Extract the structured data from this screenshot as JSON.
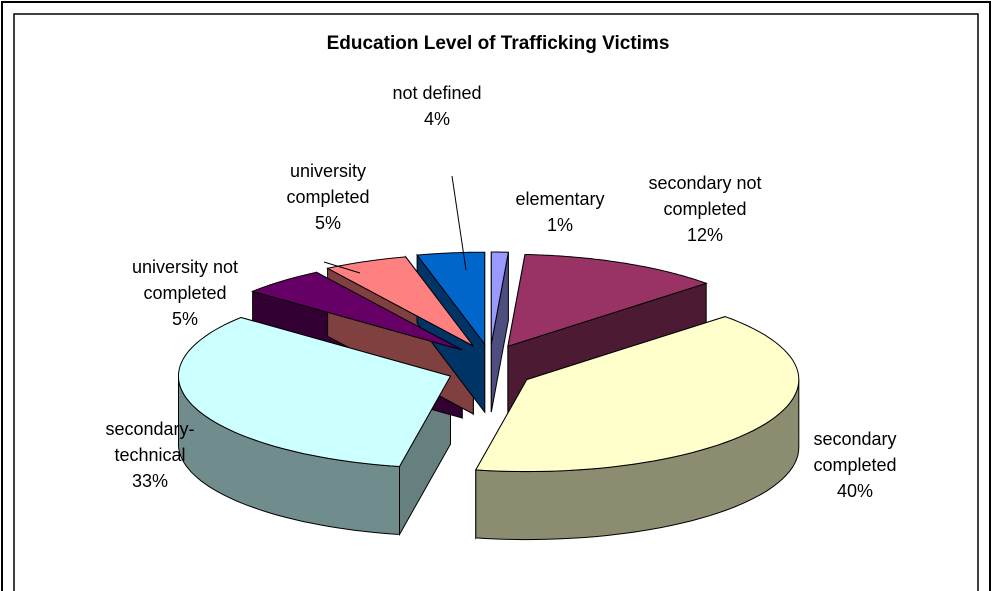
{
  "chart_data": {
    "type": "pie3d",
    "title": "Education Level of Trafficking Victims",
    "categories": [
      "elementary",
      "secondary not completed",
      "secondary completed",
      "secondary-technical",
      "university not completed",
      "university completed",
      "not defined"
    ],
    "values": [
      1,
      12,
      40,
      33,
      5,
      5,
      4
    ],
    "value_labels": [
      "1%",
      "12%",
      "40%",
      "33%",
      "5%",
      "5%",
      "4%"
    ],
    "colors": [
      "#9999ff",
      "#993366",
      "#ffffcc",
      "#ccffff",
      "#660066",
      "#ff8080",
      "#0066cc"
    ]
  }
}
